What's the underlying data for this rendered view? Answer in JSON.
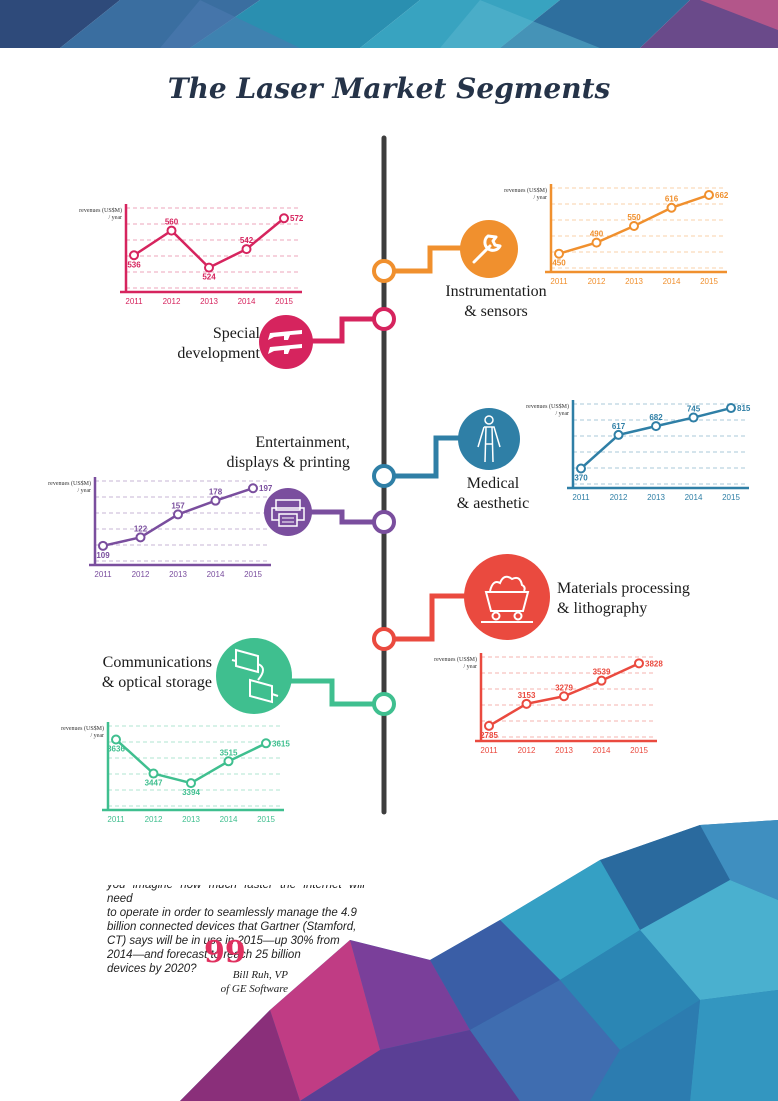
{
  "page": {
    "title": "The Laser Market Segments",
    "quote_lines": [
      "you imagine how much faster the internet will need",
      "to operate in order to seamlessly manage the 4.9",
      "billion connected devices that Gartner (Stamford,",
      "CT) says will be in use in 2015—up 30% from",
      "2014—and forecast to reach 25 billion",
      "devices by 2020?"
    ],
    "quote_mark": "99",
    "attribution_lines": [
      "Bill Ruh, VP",
      "of GE Software"
    ]
  },
  "segments": [
    {
      "key": "instrumentation",
      "label_lines": [
        "Instrumentation",
        "& sensors"
      ],
      "color": "#f0902e",
      "icon": "wrench-icon"
    },
    {
      "key": "special",
      "label_lines": [
        "Special",
        "development"
      ],
      "color": "#d6245e",
      "icon": "rifles-icon"
    },
    {
      "key": "medical",
      "label_lines": [
        "Medical",
        "& aesthetic"
      ],
      "color": "#2f7fa6",
      "icon": "human-body-icon"
    },
    {
      "key": "entertainment",
      "label_lines": [
        "Entertainment,",
        "displays & printing"
      ],
      "color": "#7a4e9e",
      "icon": "printer-icon"
    },
    {
      "key": "materials",
      "label_lines": [
        "Materials processing",
        "& lithography"
      ],
      "color": "#ea4a3f",
      "icon": "mine-cart-icon"
    },
    {
      "key": "communications",
      "label_lines": [
        "Communications",
        "& optical storage"
      ],
      "color": "#3fbf8f",
      "icon": "fiber-connector-icon"
    }
  ],
  "chart_data": [
    {
      "name": "Special development",
      "type": "line",
      "x": [
        "2011",
        "2012",
        "2013",
        "2014",
        "2015"
      ],
      "y": [
        536,
        560,
        524,
        542,
        572
      ],
      "ylabel": "revenues (US$M) / year",
      "color": "#d6245e",
      "ylim": [
        510,
        580
      ]
    },
    {
      "name": "Instrumentation & sensors",
      "type": "line",
      "x": [
        "2011",
        "2012",
        "2013",
        "2014",
        "2015"
      ],
      "y": [
        450,
        490,
        550,
        616,
        662
      ],
      "ylabel": "revenues (US$M) / year",
      "color": "#f0902e",
      "ylim": [
        420,
        680
      ]
    },
    {
      "name": "Medical & aesthetic",
      "type": "line",
      "x": [
        "2011",
        "2012",
        "2013",
        "2014",
        "2015"
      ],
      "y": [
        370,
        617,
        682,
        745,
        815
      ],
      "ylabel": "revenues (US$M) / year",
      "color": "#2f7fa6",
      "ylim": [
        300,
        830
      ]
    },
    {
      "name": "Entertainment, displays & printing",
      "type": "line",
      "x": [
        "2011",
        "2012",
        "2013",
        "2014",
        "2015"
      ],
      "y": [
        109,
        122,
        157,
        178,
        197
      ],
      "ylabel": "revenues (US$M) / year",
      "color": "#7a4e9e",
      "ylim": [
        95,
        205
      ]
    },
    {
      "name": "Materials processing & lithography",
      "type": "line",
      "x": [
        "2011",
        "2012",
        "2013",
        "2014",
        "2015"
      ],
      "y": [
        2785,
        3153,
        3279,
        3539,
        3828
      ],
      "ylabel": "revenues (US$M) / year",
      "color": "#ea4a3f",
      "ylim": [
        2700,
        3900
      ]
    },
    {
      "name": "Communications & optical storage",
      "type": "line",
      "x": [
        "2011",
        "2012",
        "2013",
        "2014",
        "2015"
      ],
      "y": [
        3636,
        3447,
        3394,
        3515,
        3615
      ],
      "ylabel": "revenues (US$M) / year",
      "color": "#3fbf8f",
      "ylim": [
        3300,
        3700
      ]
    }
  ]
}
